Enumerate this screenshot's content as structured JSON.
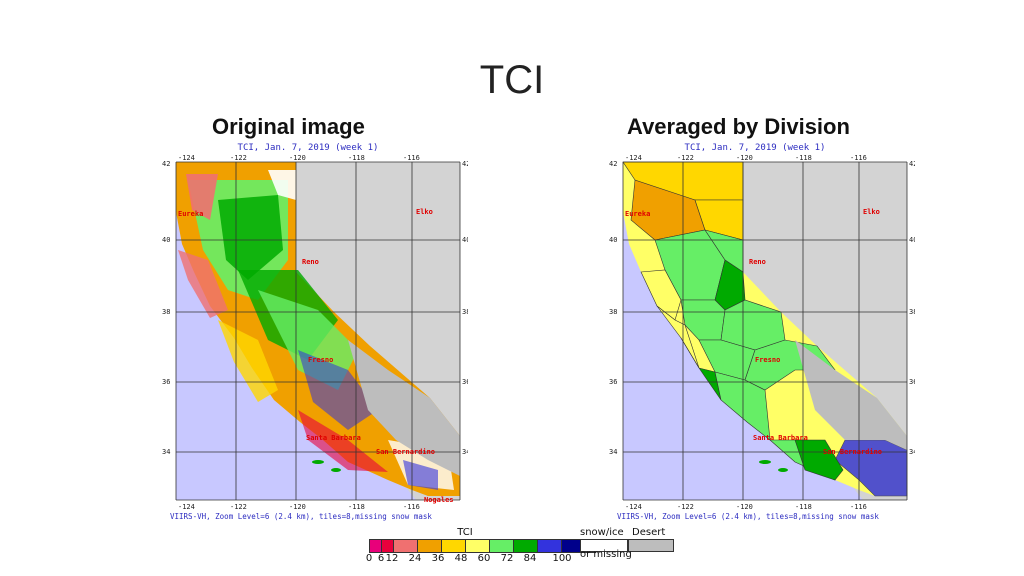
{
  "slide": {
    "title": "TCI"
  },
  "panels": [
    {
      "heading": "Original image",
      "caption": "TCI, Jan. 7, 2019 (week 1)",
      "footer": "VIIRS-VH, Zoom Level=6 (2.4 km), tiles=8,missing snow mask"
    },
    {
      "heading": "Averaged by Division",
      "caption": "TCI, Jan. 7, 2019 (week 1)",
      "footer": "VIIRS-VH, Zoom Level=6 (2.4 km), tiles=8,missing snow mask"
    }
  ],
  "map_labels": {
    "lon_ticks": [
      "-124",
      "-122",
      "-120",
      "-118",
      "-116"
    ],
    "lat_ticks": [
      "42",
      "40",
      "38",
      "36",
      "34"
    ],
    "cities": {
      "eureka": "Eureka",
      "elko": "Elko",
      "reno": "Reno",
      "fresno": "Fresno",
      "santa_barbara": "Santa Barbara",
      "san_bernardino": "San Bernardino",
      "nogales": "Nogales"
    }
  },
  "legend": {
    "title": "TCI",
    "tick_labels": [
      "0",
      "6",
      "12",
      "24",
      "36",
      "48",
      "60",
      "72",
      "84",
      "100"
    ],
    "colors": [
      "#e8007a",
      "#e8003c",
      "#f07070",
      "#f0a000",
      "#ffd700",
      "#ffff66",
      "#66ee66",
      "#00aa00",
      "#3333dd",
      "#00008b"
    ],
    "snow_ice_label": "snow/ice",
    "desert_label": "Desert",
    "missing_label": "or missing",
    "snow_color": "#ffffff",
    "desert_color": "#bdbdbd"
  },
  "colors": {
    "ocean": "#c8c8ff",
    "non_ca_land": "#d3d3d3",
    "grid": "#333333",
    "city_label": "#e00000",
    "caption_text": "#2c2cc0"
  }
}
